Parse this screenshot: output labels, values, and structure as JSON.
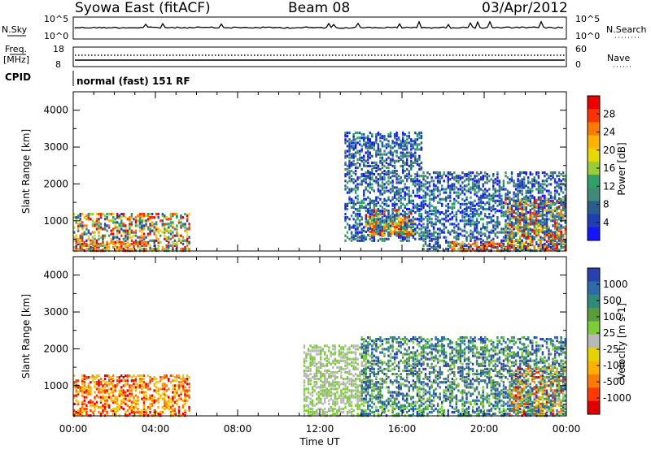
{
  "header": {
    "station": "Syowa East (fitACF)",
    "beam": "Beam 08",
    "date": "03/Apr/2012"
  },
  "noise_panel": {
    "left_label": "N.Sky",
    "right_label": "N.Search",
    "left_ticks": [
      "10^5",
      "10^0"
    ],
    "right_ticks": [
      "10^5",
      "10^0"
    ]
  },
  "freq_panel": {
    "left_label_1": "Freq.",
    "left_label_2": "[MHz]",
    "right_label": "Nave",
    "left_ticks": [
      "18",
      "8"
    ],
    "right_ticks": [
      "60",
      "0"
    ]
  },
  "cpid_panel": {
    "label": "CPID",
    "program": "normal (fast) 151 RF"
  },
  "chart_data": [
    {
      "type": "heatmap",
      "title": "Power",
      "ylabel": "Slant Range [km]",
      "ylim": [
        180,
        4500
      ],
      "y_ticks": [
        "4000",
        "3000",
        "2000",
        "1000"
      ],
      "xlim_hours": [
        0,
        24
      ],
      "colorbar_label": "Power [dB]",
      "colorbar_ticks": [
        "28",
        "24",
        "20",
        "16",
        "12",
        "8",
        "4"
      ],
      "colorbar_colors": [
        "#ee0000",
        "#ff3300",
        "#ff7a00",
        "#ffb300",
        "#e6d800",
        "#98cc3a",
        "#33a06a",
        "#3f8a78",
        "#2a5c8e",
        "#1e3fb0",
        "#1414ff"
      ],
      "regions_km": [
        {
          "t0": 0.0,
          "t1": 5.6,
          "r0": 180,
          "r1": 1200,
          "level": "mixed-high"
        },
        {
          "t0": 0.0,
          "t1": 3.6,
          "r0": 180,
          "r1": 450,
          "level": "high"
        },
        {
          "t0": 13.2,
          "t1": 17.0,
          "r0": 450,
          "r1": 3400,
          "level": "low"
        },
        {
          "t0": 14.2,
          "t1": 16.6,
          "r0": 600,
          "r1": 1300,
          "level": "mixed-high"
        },
        {
          "t0": 17.0,
          "t1": 24.0,
          "r0": 180,
          "r1": 2300,
          "level": "low"
        },
        {
          "t0": 18.4,
          "t1": 21.0,
          "r0": 180,
          "r1": 420,
          "level": "high"
        },
        {
          "t0": 21.0,
          "t1": 24.0,
          "r0": 200,
          "r1": 1600,
          "level": "mixed-high"
        }
      ]
    },
    {
      "type": "heatmap",
      "title": "Velocity",
      "ylabel": "Slant Range [km]",
      "ylim": [
        180,
        4500
      ],
      "y_ticks": [
        "4000",
        "3000",
        "2000",
        "1000"
      ],
      "xlim_hours": [
        0,
        24
      ],
      "x_ticks": [
        "00:00",
        "04:00",
        "08:00",
        "12:00",
        "16:00",
        "20:00",
        "00:00"
      ],
      "xlabel": "Time UT",
      "colorbar_label": "Velocity [m s-1]",
      "colorbar_ticks": [
        "1000",
        "500",
        "100",
        "25",
        "-25",
        "-100",
        "-500",
        "-1000"
      ],
      "colorbar_colors": [
        "#2a3fb0",
        "#2e6aa8",
        "#2f8a7a",
        "#5a9c3a",
        "#7fcc3a",
        "#b8b8b8",
        "#e6d200",
        "#ffb000",
        "#ff7a00",
        "#ff3a00",
        "#e00000"
      ],
      "regions_km": [
        {
          "t0": 0.0,
          "t1": 5.6,
          "r0": 180,
          "r1": 1300,
          "level": "negative"
        },
        {
          "t0": 11.2,
          "t1": 14.2,
          "r0": 180,
          "r1": 2100,
          "level": "near-zero"
        },
        {
          "t0": 14.0,
          "t1": 24.0,
          "r0": 180,
          "r1": 2300,
          "level": "positive"
        },
        {
          "t0": 21.2,
          "t1": 24.0,
          "r0": 180,
          "r1": 1500,
          "level": "mixed"
        }
      ]
    }
  ]
}
